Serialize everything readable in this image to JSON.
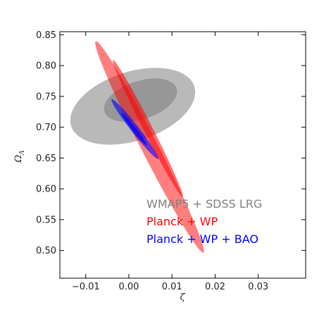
{
  "chart_data": {
    "type": "contour",
    "xlabel": "ζ",
    "ylabel": "Ω_Λ",
    "xlim": [
      -0.016,
      0.041
    ],
    "ylim": [
      0.455,
      0.855
    ],
    "xticks": [
      {
        "value": -0.01,
        "label": "−0.01"
      },
      {
        "value": 0.0,
        "label": "0.00"
      },
      {
        "value": 0.01,
        "label": "0.01"
      },
      {
        "value": 0.02,
        "label": "0.02"
      },
      {
        "value": 0.03,
        "label": "0.03"
      }
    ],
    "yticks": [
      {
        "value": 0.5,
        "label": "0.50"
      },
      {
        "value": 0.55,
        "label": "0.55"
      },
      {
        "value": 0.6,
        "label": "0.60"
      },
      {
        "value": 0.65,
        "label": "0.65"
      },
      {
        "value": 0.7,
        "label": "0.70"
      },
      {
        "value": 0.75,
        "label": "0.75"
      },
      {
        "value": 0.8,
        "label": "0.80"
      },
      {
        "value": 0.85,
        "label": "0.85"
      }
    ],
    "legend_placement": "lower-right",
    "series": [
      {
        "name": "WMAP5 + SDSS LRG",
        "color": "#808080",
        "regions": [
          {
            "level": "outer",
            "center": [
              0.0009,
              0.734
            ],
            "semi_axes": [
              0.015,
              0.056
            ],
            "angle_deg": 18,
            "opacity": 0.55
          },
          {
            "level": "inner",
            "center": [
              0.0027,
              0.744
            ],
            "semi_axes": [
              0.0088,
              0.031
            ],
            "angle_deg": 18,
            "opacity": 0.6
          }
        ]
      },
      {
        "name": "Planck + WP",
        "color": "#ff0000",
        "regions": [
          {
            "level": "outer",
            "center": [
              0.0048,
              0.668
            ],
            "semi_axes": [
              0.0275,
              0.0135
            ],
            "angle_deg": -63,
            "opacity": 0.5
          },
          {
            "level": "inner",
            "center": [
              0.0044,
              0.698
            ],
            "semi_axes": [
              0.0178,
              0.0072
            ],
            "angle_deg": -63,
            "opacity": 0.55
          }
        ]
      },
      {
        "name": "Planck + WP + BAO",
        "color": "#0000ff",
        "regions": [
          {
            "level": "outer",
            "center": [
              0.0014,
              0.697
            ],
            "semi_axes": [
              0.0088,
              0.0062
            ],
            "angle_deg": -52,
            "opacity": 0.6
          },
          {
            "level": "inner",
            "center": [
              0.0012,
              0.697
            ],
            "semi_axes": [
              0.0048,
              0.0034
            ],
            "angle_deg": -52,
            "opacity": 0.7
          }
        ]
      }
    ]
  }
}
